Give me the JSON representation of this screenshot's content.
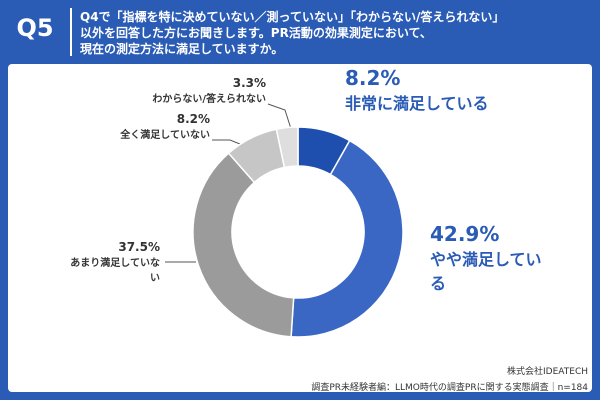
{
  "question_label": "Q5",
  "chart_data": {
    "type": "pie",
    "donut": true,
    "title": [
      "Q4で「指標を特に決めていない／測っていない」「わからない/答えられない」",
      "以外を回答した方にお聞きします。PR活動の効果測定において、",
      "現在の測定方法に満足していますか。"
    ],
    "categories": [
      "非常に満足している",
      "やや満足している",
      "あまり満足していない",
      "全く満足していない",
      "わからない/答えられない"
    ],
    "values": [
      8.2,
      42.9,
      37.5,
      8.2,
      3.3
    ],
    "value_labels": [
      "8.2%",
      "42.9%",
      "37.5%",
      "8.2%",
      "3.3%"
    ],
    "colors": [
      "#1f4fae",
      "#3a67c4",
      "#9b9b9b",
      "#c6c6c6",
      "#dedede"
    ]
  },
  "footer": [
    "株式会社IDEATECH",
    "調査PR未経験者編：LLMO時代の調査PRに関する実態調査｜n=184"
  ]
}
